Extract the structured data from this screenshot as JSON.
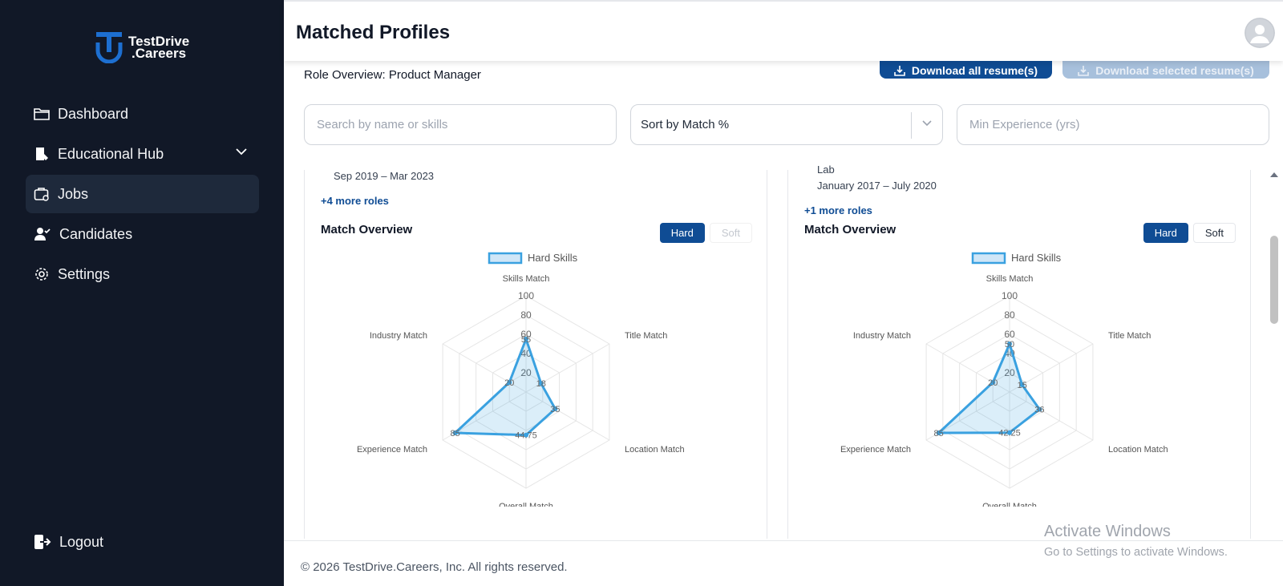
{
  "app": {
    "logo_line1": "TestDrive",
    "logo_line2": ".Careers"
  },
  "sidebar": {
    "items": [
      {
        "label": "Dashboard",
        "icon": "folder-icon"
      },
      {
        "label": "Educational Hub",
        "icon": "book-icon"
      },
      {
        "label": "Jobs",
        "icon": "briefcase-icon",
        "active": true
      },
      {
        "label": "Candidates",
        "icon": "users-icon"
      },
      {
        "label": "Settings",
        "icon": "gear-icon"
      }
    ],
    "logout_label": "Logout"
  },
  "header": {
    "title": "Matched Profiles"
  },
  "main": {
    "role_overview": "Role Overview: Product Manager",
    "download_all_label": "Download all resume(s)",
    "download_selected_label": "Download selected resume(s)",
    "search_placeholder": "Search by name or skills",
    "sort_label": "Sort by Match %",
    "min_exp_placeholder": "Min Experience (yrs)"
  },
  "cards": [
    {
      "dates": "Sep 2019 – Mar 2023",
      "more_roles": "+4 more roles",
      "match_title": "Match Overview",
      "hard_label": "Hard",
      "soft_label": "Soft",
      "legend": "Hard Skills",
      "axis_labels": [
        "Skills Match",
        "Title Match",
        "Location Match",
        "Overall Match",
        "Experience Match",
        "Industry Match"
      ],
      "values": [
        55,
        18,
        35,
        44.75,
        85,
        20
      ]
    },
    {
      "org_partial": "Lab",
      "dates": "January 2017 – July 2020",
      "more_roles": "+1 more roles",
      "match_title": "Match Overview",
      "hard_label": "Hard",
      "soft_label": "Soft",
      "legend": "Hard Skills",
      "axis_labels": [
        "Skills Match",
        "Title Match",
        "Location Match",
        "Overall Match",
        "Experience Match",
        "Industry Match"
      ],
      "values": [
        50,
        15,
        36,
        42.25,
        85,
        20
      ]
    }
  ],
  "chart_data": [
    {
      "type": "radar",
      "legend": [
        "Hard Skills"
      ],
      "axes": [
        "Skills Match",
        "Title Match",
        "Location Match",
        "Overall Match",
        "Experience Match",
        "Industry Match"
      ],
      "ticks": [
        20,
        40,
        60,
        80,
        100
      ],
      "series": [
        {
          "name": "Hard Skills",
          "values": [
            55,
            18,
            35,
            44.75,
            85,
            20
          ]
        }
      ]
    },
    {
      "type": "radar",
      "legend": [
        "Hard Skills"
      ],
      "axes": [
        "Skills Match",
        "Title Match",
        "Location Match",
        "Overall Match",
        "Experience Match",
        "Industry Match"
      ],
      "ticks": [
        20,
        40,
        60,
        80,
        100
      ],
      "series": [
        {
          "name": "Hard Skills",
          "values": [
            50,
            15,
            36,
            42.25,
            85,
            20
          ]
        }
      ]
    }
  ],
  "footer": {
    "copyright": "© 2026 TestDrive.Careers, Inc. All rights reserved."
  },
  "watermark": {
    "title": "Activate Windows",
    "subtitle": "Go to Settings to activate Windows."
  }
}
